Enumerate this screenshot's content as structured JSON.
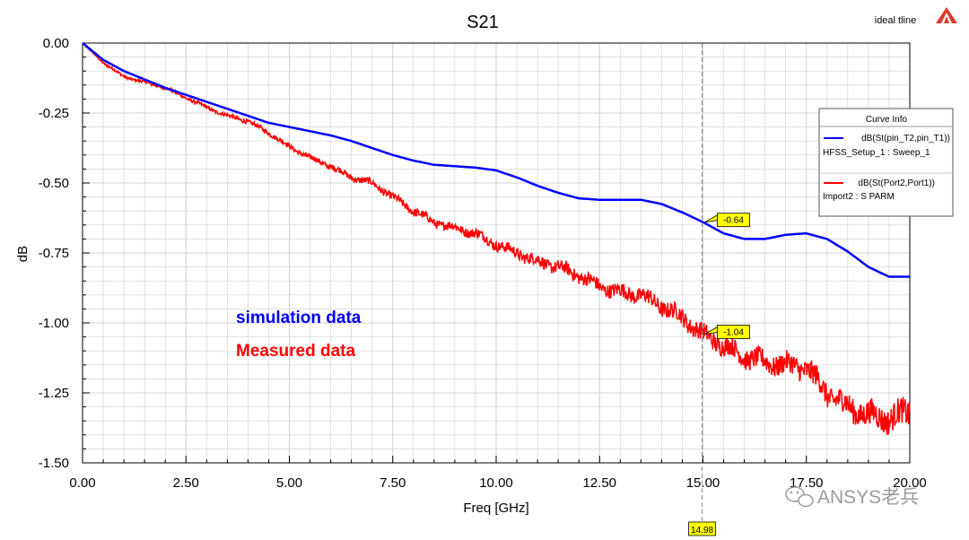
{
  "chart_data": {
    "type": "line",
    "title": "S21",
    "xlabel": "Freq [GHz]",
    "ylabel": "dB",
    "xlim": [
      0,
      20
    ],
    "ylim": [
      -1.5,
      0
    ],
    "x_ticks": [
      "0.00",
      "2.50",
      "5.00",
      "7.50",
      "10.00",
      "12.50",
      "15.00",
      "17.50",
      "20.00"
    ],
    "y_ticks": [
      "0.00",
      "-0.25",
      "-0.50",
      "-0.75",
      "-1.00",
      "-1.25",
      "-1.50"
    ],
    "grid": true,
    "legend_position": "top-right",
    "legend": {
      "title": "Curve Info",
      "entries": [
        {
          "line1": "dB(St(pin_T2,pin_T1))",
          "line2": "HFSS_Setup_1 : Sweep_1",
          "color": "#0000ff"
        },
        {
          "line1": "dB(St(Port2,Port1))",
          "line2": "Import2 : S PARM",
          "color": "#ff0000"
        }
      ]
    },
    "series": [
      {
        "color": "#0000ff",
        "x": [
          0,
          0.5,
          1,
          1.5,
          2,
          2.5,
          3,
          3.5,
          4,
          4.5,
          5,
          5.5,
          6,
          6.5,
          7,
          7.5,
          8,
          8.5,
          9,
          9.5,
          10,
          10.5,
          11,
          11.5,
          12,
          12.5,
          13,
          13.5,
          14,
          14.5,
          15,
          15.5,
          16,
          16.5,
          17,
          17.5,
          18,
          18.5,
          19,
          19.5,
          20
        ],
        "y": [
          0,
          -0.06,
          -0.1,
          -0.13,
          -0.16,
          -0.185,
          -0.21,
          -0.235,
          -0.26,
          -0.285,
          -0.3,
          -0.315,
          -0.33,
          -0.35,
          -0.375,
          -0.4,
          -0.42,
          -0.435,
          -0.44,
          -0.445,
          -0.455,
          -0.48,
          -0.51,
          -0.535,
          -0.555,
          -0.56,
          -0.56,
          -0.56,
          -0.575,
          -0.605,
          -0.64,
          -0.68,
          -0.7,
          -0.7,
          -0.685,
          -0.68,
          -0.7,
          -0.745,
          -0.8,
          -0.835,
          -0.835
        ]
      },
      {
        "color": "#ff0000",
        "x": [
          0,
          0.5,
          1,
          1.5,
          2,
          2.5,
          3,
          3.5,
          4,
          4.5,
          5,
          5.5,
          6,
          6.5,
          7,
          7.5,
          8,
          8.5,
          9,
          9.5,
          10,
          10.5,
          11,
          11.5,
          12,
          12.5,
          13,
          13.5,
          14,
          14.5,
          15,
          15.5,
          16,
          16.5,
          17,
          17.5,
          18,
          18.5,
          19,
          19.5,
          20
        ],
        "y": [
          0,
          -0.07,
          -0.12,
          -0.14,
          -0.16,
          -0.195,
          -0.23,
          -0.26,
          -0.28,
          -0.32,
          -0.37,
          -0.41,
          -0.44,
          -0.48,
          -0.5,
          -0.55,
          -0.6,
          -0.64,
          -0.66,
          -0.68,
          -0.72,
          -0.75,
          -0.78,
          -0.8,
          -0.83,
          -0.87,
          -0.89,
          -0.9,
          -0.94,
          -0.98,
          -1.04,
          -1.08,
          -1.12,
          -1.14,
          -1.15,
          -1.16,
          -1.25,
          -1.3,
          -1.33,
          -1.34,
          -1.32
        ]
      }
    ],
    "markers": [
      {
        "x": 15,
        "y": -0.64,
        "label": "-0.64",
        "series": 0
      },
      {
        "x": 15,
        "y": -1.04,
        "label": "-1.04",
        "series": 1
      }
    ],
    "cursor": {
      "x": 14.98,
      "label": "14.98"
    },
    "annotations": [
      {
        "text": "simulation data",
        "color": "#0000ff"
      },
      {
        "text": "Measured data",
        "color": "#ff0000"
      }
    ]
  },
  "corner_label": "ideal tline",
  "watermark": "ANSYS老兵",
  "colors": {
    "simulation": "#0000ff",
    "measured": "#ff0000",
    "marker_fill": "#ffff00",
    "grid": "#d0d0d0"
  }
}
